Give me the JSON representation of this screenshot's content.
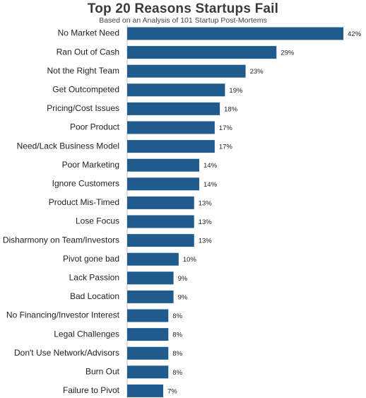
{
  "chart_data": {
    "type": "bar",
    "orientation": "horizontal",
    "title": "Top 20 Reasons Startups Fail",
    "subtitle": "Based on an Analysis of 101 Startup Post-Mortems",
    "categories": [
      "No Market Need",
      "Ran Out of Cash",
      "Not the Right Team",
      "Get Outcompeted",
      "Pricing/Cost Issues",
      "Poor Product",
      "Need/Lack Business Model",
      "Poor Marketing",
      "Ignore Customers",
      "Product Mis-Timed",
      "Lose Focus",
      "Disharmony on Team/Investors",
      "Pivot gone bad",
      "Lack Passion",
      "Bad Location",
      "No Financing/Investor Interest",
      "Legal Challenges",
      "Don't Use Network/Advisors",
      "Burn Out",
      "Failure to Pivot"
    ],
    "values": [
      42,
      29,
      23,
      19,
      18,
      17,
      17,
      14,
      14,
      13,
      13,
      13,
      10,
      9,
      9,
      8,
      8,
      8,
      8,
      7
    ],
    "value_labels": [
      "42%",
      "29%",
      "23%",
      "19%",
      "18%",
      "17%",
      "17%",
      "14%",
      "14%",
      "13%",
      "13%",
      "13%",
      "10%",
      "9%",
      "9%",
      "8%",
      "8%",
      "8%",
      "8%",
      "7%"
    ],
    "unit": "%",
    "xlim": [
      0,
      42
    ],
    "bar_color": "#1f5b8c",
    "grid": false,
    "legend": false
  }
}
